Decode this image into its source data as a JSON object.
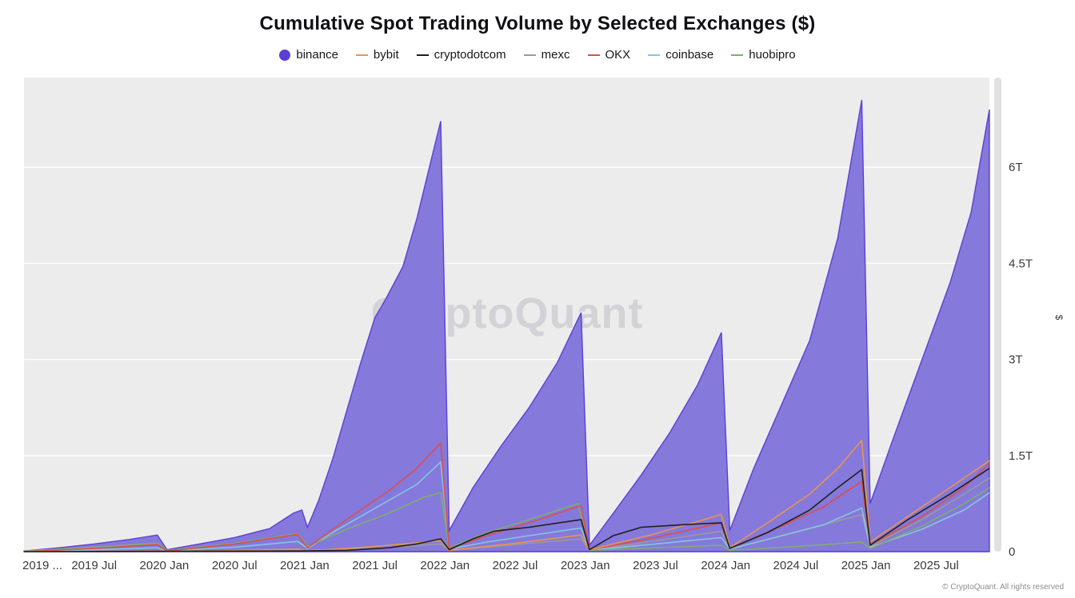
{
  "title": "Cumulative Spot Trading Volume by Selected Exchanges ($)",
  "footer": "© CryptoQuant. All rights reserved",
  "watermark": "CryptoQuant",
  "chart_data": {
    "type": "area",
    "title": "Cumulative Spot Trading Volume by Selected Exchanges ($)",
    "ylabel": "$",
    "unit": "T = trillions of USD, cumulative year-to-date (resets each January)",
    "ylim": [
      0,
      7.4
    ],
    "x_domain": [
      2019.0,
      2025.88
    ],
    "grid": true,
    "legend_position": "top-center",
    "watermark": "CryptoQuant",
    "plot_bg": "#ececec",
    "y_ticks": [
      {
        "label": "0",
        "v": 0
      },
      {
        "label": "1.5T",
        "v": 1.5
      },
      {
        "label": "3T",
        "v": 3
      },
      {
        "label": "4.5T",
        "v": 4.5
      },
      {
        "label": "6T",
        "v": 6
      }
    ],
    "x_ticks": [
      {
        "label": "2019 ...",
        "t": 2019.0
      },
      {
        "label": "2019 Jul",
        "t": 2019.5
      },
      {
        "label": "2020 Jan",
        "t": 2020.0
      },
      {
        "label": "2020 Jul",
        "t": 2020.5
      },
      {
        "label": "2021 Jan",
        "t": 2021.0
      },
      {
        "label": "2021 Jul",
        "t": 2021.5
      },
      {
        "label": "2022 Jan",
        "t": 2022.0
      },
      {
        "label": "2022 Jul",
        "t": 2022.5
      },
      {
        "label": "2023 Jan",
        "t": 2023.0
      },
      {
        "label": "2023 Jul",
        "t": 2023.5
      },
      {
        "label": "2024 Jan",
        "t": 2024.0
      },
      {
        "label": "2024 Jul",
        "t": 2024.5
      },
      {
        "label": "2025 Jan",
        "t": 2025.0
      },
      {
        "label": "2025 Jul",
        "t": 2025.5
      }
    ],
    "series": [
      {
        "name": "binance",
        "style": "area",
        "color": "#5b3fd6",
        "fill": "#8579db",
        "points": [
          [
            2019.0,
            0.01
          ],
          [
            2019.25,
            0.06
          ],
          [
            2019.5,
            0.12
          ],
          [
            2019.75,
            0.19
          ],
          [
            2019.95,
            0.26
          ],
          [
            2020.02,
            0.03
          ],
          [
            2020.25,
            0.12
          ],
          [
            2020.5,
            0.22
          ],
          [
            2020.75,
            0.36
          ],
          [
            2020.92,
            0.6
          ],
          [
            2020.98,
            0.65
          ],
          [
            2021.02,
            0.38
          ],
          [
            2021.1,
            0.8
          ],
          [
            2021.2,
            1.45
          ],
          [
            2021.3,
            2.2
          ],
          [
            2021.4,
            2.95
          ],
          [
            2021.5,
            3.65
          ],
          [
            2021.58,
            3.95
          ],
          [
            2021.7,
            4.45
          ],
          [
            2021.8,
            5.2
          ],
          [
            2021.9,
            6.1
          ],
          [
            2021.97,
            6.72
          ],
          [
            2022.03,
            0.33
          ],
          [
            2022.2,
            1.0
          ],
          [
            2022.4,
            1.65
          ],
          [
            2022.6,
            2.25
          ],
          [
            2022.8,
            2.95
          ],
          [
            2022.97,
            3.73
          ],
          [
            2023.03,
            0.1
          ],
          [
            2023.2,
            0.6
          ],
          [
            2023.4,
            1.2
          ],
          [
            2023.6,
            1.85
          ],
          [
            2023.8,
            2.6
          ],
          [
            2023.97,
            3.42
          ],
          [
            2024.03,
            0.33
          ],
          [
            2024.2,
            1.3
          ],
          [
            2024.4,
            2.3
          ],
          [
            2024.6,
            3.3
          ],
          [
            2024.8,
            4.9
          ],
          [
            2024.97,
            7.05
          ],
          [
            2025.03,
            0.75
          ],
          [
            2025.2,
            1.8
          ],
          [
            2025.4,
            3.0
          ],
          [
            2025.6,
            4.2
          ],
          [
            2025.75,
            5.3
          ],
          [
            2025.88,
            6.9
          ]
        ]
      },
      {
        "name": "mexc",
        "style": "line",
        "color": "#9a9a9a",
        "points": [
          [
            2019.0,
            0.0
          ],
          [
            2020.95,
            0.02
          ],
          [
            2021.5,
            0.05
          ],
          [
            2021.97,
            0.12
          ],
          [
            2022.03,
            0.02
          ],
          [
            2022.97,
            0.2
          ],
          [
            2023.03,
            0.02
          ],
          [
            2023.97,
            0.32
          ],
          [
            2024.03,
            0.04
          ],
          [
            2024.5,
            0.3
          ],
          [
            2024.97,
            0.58
          ],
          [
            2025.03,
            0.08
          ],
          [
            2025.4,
            0.5
          ],
          [
            2025.7,
            0.9
          ],
          [
            2025.88,
            1.15
          ]
        ]
      },
      {
        "name": "coinbase",
        "style": "line",
        "color": "#86c6e0",
        "points": [
          [
            2019.0,
            0.0
          ],
          [
            2019.5,
            0.03
          ],
          [
            2019.95,
            0.06
          ],
          [
            2020.02,
            0.01
          ],
          [
            2020.5,
            0.07
          ],
          [
            2020.95,
            0.16
          ],
          [
            2021.02,
            0.05
          ],
          [
            2021.2,
            0.3
          ],
          [
            2021.4,
            0.55
          ],
          [
            2021.6,
            0.8
          ],
          [
            2021.8,
            1.05
          ],
          [
            2021.97,
            1.4
          ],
          [
            2022.03,
            0.04
          ],
          [
            2022.3,
            0.15
          ],
          [
            2022.6,
            0.25
          ],
          [
            2022.97,
            0.37
          ],
          [
            2023.03,
            0.02
          ],
          [
            2023.5,
            0.12
          ],
          [
            2023.97,
            0.22
          ],
          [
            2024.03,
            0.04
          ],
          [
            2024.4,
            0.25
          ],
          [
            2024.7,
            0.42
          ],
          [
            2024.97,
            0.68
          ],
          [
            2025.03,
            0.07
          ],
          [
            2025.4,
            0.35
          ],
          [
            2025.7,
            0.65
          ],
          [
            2025.88,
            0.92
          ]
        ]
      },
      {
        "name": "huobipro",
        "style": "line",
        "color": "#7fae6e",
        "points": [
          [
            2019.0,
            0.01
          ],
          [
            2019.5,
            0.07
          ],
          [
            2019.95,
            0.13
          ],
          [
            2020.02,
            0.02
          ],
          [
            2020.5,
            0.13
          ],
          [
            2020.95,
            0.28
          ],
          [
            2021.02,
            0.08
          ],
          [
            2021.3,
            0.35
          ],
          [
            2021.6,
            0.6
          ],
          [
            2021.85,
            0.85
          ],
          [
            2021.97,
            0.92
          ],
          [
            2022.03,
            0.06
          ],
          [
            2022.3,
            0.3
          ],
          [
            2022.6,
            0.5
          ],
          [
            2022.95,
            0.75
          ],
          [
            2023.03,
            0.02
          ],
          [
            2023.5,
            0.06
          ],
          [
            2023.97,
            0.1
          ],
          [
            2024.03,
            0.02
          ],
          [
            2024.5,
            0.08
          ],
          [
            2024.97,
            0.15
          ],
          [
            2025.03,
            0.05
          ],
          [
            2025.4,
            0.4
          ],
          [
            2025.7,
            0.75
          ],
          [
            2025.88,
            1.0
          ]
        ]
      },
      {
        "name": "OKX",
        "style": "line",
        "color": "#d94f4f",
        "points": [
          [
            2019.0,
            0.0
          ],
          [
            2019.5,
            0.05
          ],
          [
            2019.95,
            0.11
          ],
          [
            2020.02,
            0.01
          ],
          [
            2020.5,
            0.12
          ],
          [
            2020.95,
            0.27
          ],
          [
            2021.02,
            0.06
          ],
          [
            2021.2,
            0.35
          ],
          [
            2021.4,
            0.65
          ],
          [
            2021.6,
            0.95
          ],
          [
            2021.8,
            1.3
          ],
          [
            2021.97,
            1.7
          ],
          [
            2022.03,
            0.05
          ],
          [
            2022.3,
            0.25
          ],
          [
            2022.6,
            0.45
          ],
          [
            2022.97,
            0.72
          ],
          [
            2023.03,
            0.03
          ],
          [
            2023.5,
            0.22
          ],
          [
            2023.97,
            0.45
          ],
          [
            2024.03,
            0.05
          ],
          [
            2024.4,
            0.4
          ],
          [
            2024.7,
            0.7
          ],
          [
            2024.97,
            1.1
          ],
          [
            2025.03,
            0.1
          ],
          [
            2025.4,
            0.55
          ],
          [
            2025.7,
            1.0
          ],
          [
            2025.88,
            1.38
          ]
        ]
      },
      {
        "name": "bybit",
        "style": "line",
        "color": "#e8954f",
        "points": [
          [
            2019.0,
            0.0
          ],
          [
            2019.95,
            0.01
          ],
          [
            2020.02,
            0.0
          ],
          [
            2020.95,
            0.04
          ],
          [
            2021.02,
            0.01
          ],
          [
            2021.5,
            0.08
          ],
          [
            2021.97,
            0.17
          ],
          [
            2022.03,
            0.02
          ],
          [
            2022.5,
            0.13
          ],
          [
            2022.97,
            0.26
          ],
          [
            2023.03,
            0.03
          ],
          [
            2023.5,
            0.28
          ],
          [
            2023.97,
            0.58
          ],
          [
            2024.03,
            0.06
          ],
          [
            2024.3,
            0.45
          ],
          [
            2024.6,
            0.9
          ],
          [
            2024.8,
            1.3
          ],
          [
            2024.97,
            1.74
          ],
          [
            2025.03,
            0.15
          ],
          [
            2025.3,
            0.55
          ],
          [
            2025.6,
            1.0
          ],
          [
            2025.88,
            1.42
          ]
        ]
      },
      {
        "name": "cryptodotcom",
        "style": "line",
        "color": "#1f1f1f",
        "points": [
          [
            2019.0,
            0.0
          ],
          [
            2020.95,
            0.01
          ],
          [
            2021.3,
            0.02
          ],
          [
            2021.6,
            0.06
          ],
          [
            2021.8,
            0.12
          ],
          [
            2021.97,
            0.2
          ],
          [
            2022.03,
            0.03
          ],
          [
            2022.2,
            0.2
          ],
          [
            2022.35,
            0.32
          ],
          [
            2022.6,
            0.38
          ],
          [
            2022.97,
            0.5
          ],
          [
            2023.03,
            0.03
          ],
          [
            2023.2,
            0.25
          ],
          [
            2023.4,
            0.38
          ],
          [
            2023.7,
            0.42
          ],
          [
            2023.97,
            0.45
          ],
          [
            2024.03,
            0.05
          ],
          [
            2024.3,
            0.3
          ],
          [
            2024.6,
            0.65
          ],
          [
            2024.8,
            1.0
          ],
          [
            2024.97,
            1.28
          ],
          [
            2025.03,
            0.1
          ],
          [
            2025.3,
            0.5
          ],
          [
            2025.6,
            0.9
          ],
          [
            2025.88,
            1.3
          ]
        ]
      }
    ],
    "legend_order": [
      "binance",
      "bybit",
      "cryptodotcom",
      "mexc",
      "OKX",
      "coinbase",
      "huobipro"
    ]
  }
}
